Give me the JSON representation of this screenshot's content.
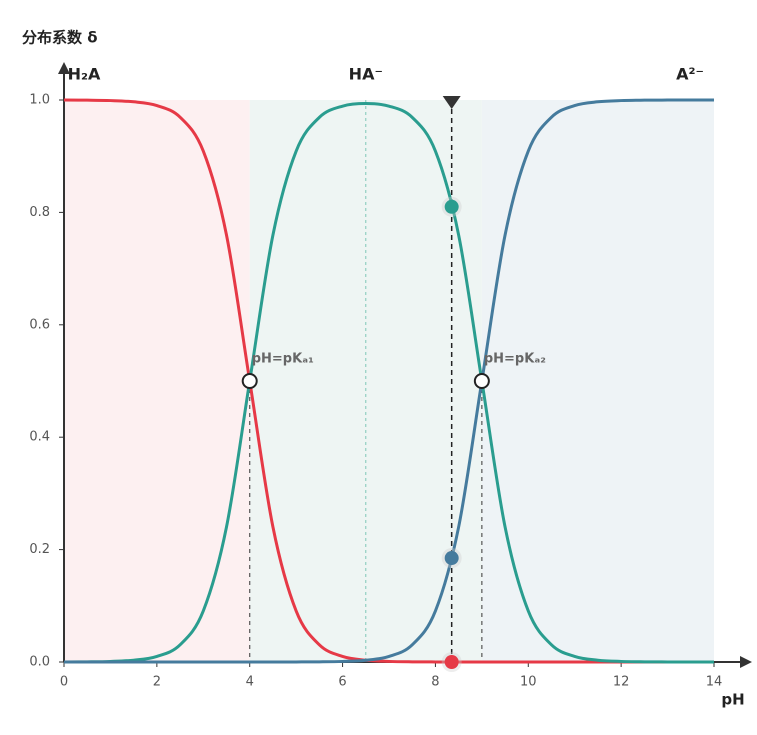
{
  "chart_data": {
    "type": "line",
    "y_label": "分布系数 δ",
    "x_label": "pH",
    "x": [
      0,
      0.5,
      1,
      1.5,
      2,
      2.5,
      3,
      3.5,
      4,
      4.5,
      5,
      5.5,
      6,
      6.5,
      7,
      7.5,
      8,
      8.5,
      9,
      9.5,
      10,
      10.5,
      11,
      11.5,
      12,
      12.5,
      13,
      13.5,
      14
    ],
    "series": [
      {
        "name": "H₂A",
        "color": "#e63946",
        "values": [
          0.9999,
          0.9997,
          0.999,
          0.9968,
          0.9901,
          0.9694,
          0.9091,
          0.7597,
          0.5,
          0.2403,
          0.0909,
          0.0306,
          0.0099,
          0.0031,
          0.001,
          0.0003,
          0.0001,
          0,
          0,
          0,
          0,
          0,
          0,
          0,
          0,
          0,
          0,
          0,
          0
        ]
      },
      {
        "name": "HA⁻",
        "color": "#2a9d8f",
        "values": [
          0.0001,
          0.0003,
          0.001,
          0.0032,
          0.0099,
          0.0306,
          0.0909,
          0.2403,
          0.5,
          0.7597,
          0.909,
          0.9691,
          0.9891,
          0.9937,
          0.9891,
          0.9691,
          0.909,
          0.7597,
          0.5,
          0.2403,
          0.0909,
          0.0306,
          0.0099,
          0.0032,
          0.001,
          0.0003,
          0.0001,
          0,
          0
        ]
      },
      {
        "name": "A²⁻",
        "color": "#457b9d",
        "values": [
          0,
          0,
          0,
          0,
          0,
          0,
          0,
          0,
          0,
          2e-05,
          0.0001,
          0.0003,
          0.001,
          0.0031,
          0.0099,
          0.0306,
          0.0909,
          0.2402,
          0.5,
          0.7597,
          0.9091,
          0.9694,
          0.9901,
          0.9968,
          0.999,
          0.9997,
          0.9999,
          1,
          1
        ]
      }
    ],
    "region_colors": [
      "#fdf0f1",
      "#eef5f3",
      "#eef3f6"
    ],
    "pka": [
      4,
      9
    ],
    "midpoint": 6.5,
    "marker_x": 8.35,
    "marker_values": [
      0,
      0.81,
      0.185
    ],
    "annotations": [
      {
        "text": "pH=pKₐ₁",
        "x": 4,
        "y": 0.5
      },
      {
        "text": "pH=pKₐ₂",
        "x": 9,
        "y": 0.5
      }
    ],
    "xlim": [
      0,
      14
    ],
    "xticks": [
      0,
      2,
      4,
      6,
      8,
      10,
      12,
      14
    ],
    "ylim": [
      0,
      1
    ],
    "yticks": [
      {
        "value": 0,
        "label": "0.0"
      },
      0.2,
      0.4,
      0.6,
      0.8,
      {
        "value": 1,
        "label": "1.0"
      }
    ],
    "grid": false
  }
}
